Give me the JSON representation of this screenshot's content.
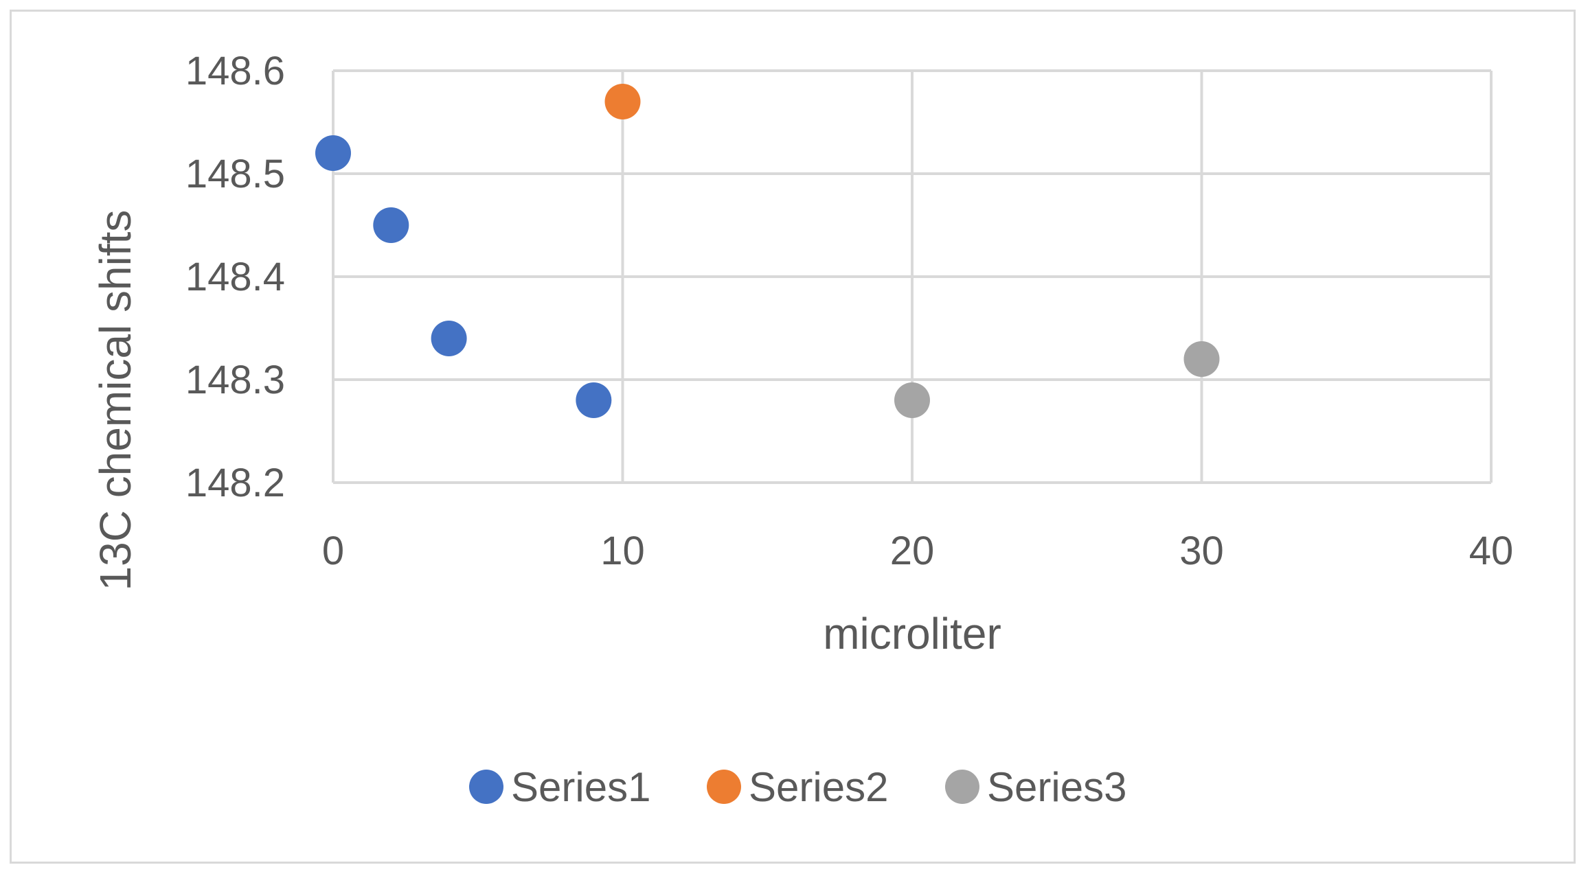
{
  "chart_data": {
    "type": "scatter",
    "title": "",
    "xlabel": "microliter",
    "ylabel": "13C chemical shifts",
    "xlim": [
      0,
      40
    ],
    "ylim": [
      148.2,
      148.6
    ],
    "xticks": [
      0,
      10,
      20,
      30,
      40
    ],
    "xtick_labels": [
      "0",
      "10",
      "20",
      "30",
      "40"
    ],
    "yticks": [
      148.2,
      148.3,
      148.4,
      148.5,
      148.6
    ],
    "ytick_labels": [
      "148.2",
      "148.3",
      "148.4",
      "148.5",
      "148.6"
    ],
    "grid": true,
    "legend_position": "bottom",
    "series": [
      {
        "name": "Series1",
        "color": "#4472c4",
        "points": [
          {
            "x": 0,
            "y": 148.52
          },
          {
            "x": 2,
            "y": 148.45
          },
          {
            "x": 4,
            "y": 148.34
          },
          {
            "x": 9,
            "y": 148.28
          }
        ]
      },
      {
        "name": "Series2",
        "color": "#ed7d31",
        "points": [
          {
            "x": 10,
            "y": 148.57
          }
        ]
      },
      {
        "name": "Series3",
        "color": "#a5a5a5",
        "points": [
          {
            "x": 20,
            "y": 148.28
          },
          {
            "x": 30,
            "y": 148.32
          }
        ]
      }
    ]
  }
}
